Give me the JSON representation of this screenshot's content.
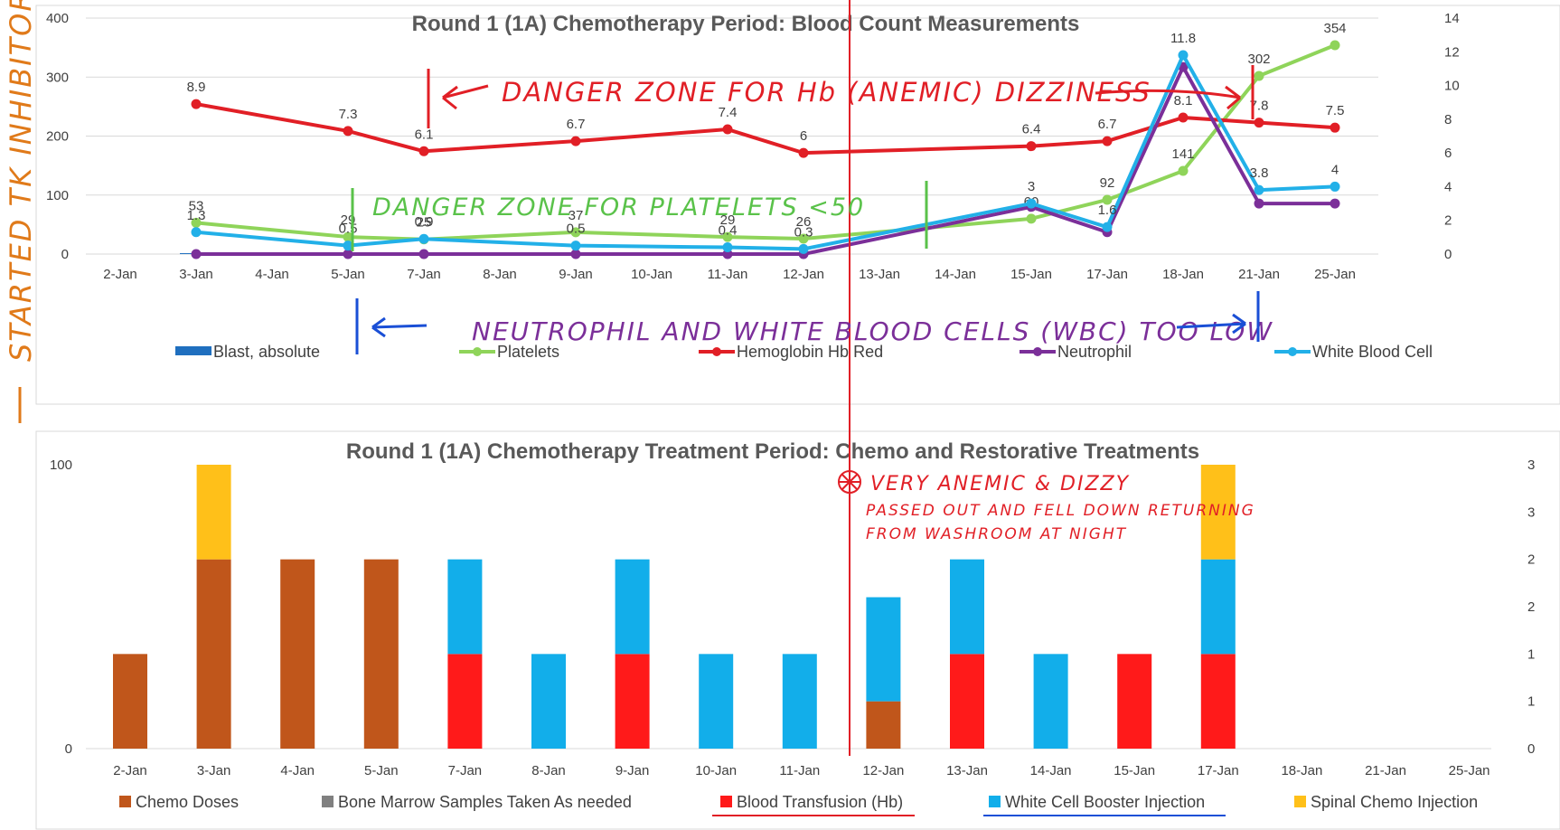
{
  "chart_data": [
    {
      "type": "line",
      "title": "Round 1 (1A) Chemotherapy Period: Blood Count Measurements",
      "categories": [
        "2-Jan",
        "3-Jan",
        "4-Jan",
        "5-Jan",
        "7-Jan",
        "8-Jan",
        "9-Jan",
        "10-Jan",
        "11-Jan",
        "12-Jan",
        "13-Jan",
        "14-Jan",
        "15-Jan",
        "17-Jan",
        "18-Jan",
        "21-Jan",
        "25-Jan"
      ],
      "ylim_left": [
        0,
        400
      ],
      "yticks_left": [
        "0",
        "100",
        "200",
        "300",
        "400"
      ],
      "ylim_right": [
        0,
        14
      ],
      "yticks_right": [
        "0",
        "2",
        "4",
        "6",
        "8",
        "10",
        "12",
        "14"
      ],
      "legend_position": "bottom",
      "series": [
        {
          "name": "Blast, absolute",
          "kind": "bar",
          "axis": "left",
          "color": "#1f6fbf",
          "values": [
            null,
            1.5,
            null,
            null,
            null,
            null,
            null,
            null,
            null,
            null,
            null,
            null,
            null,
            null,
            null,
            null,
            null
          ]
        },
        {
          "name": "Platelets",
          "kind": "line",
          "axis": "left",
          "color": "#8fd45a",
          "values": [
            null,
            53,
            null,
            29,
            25,
            null,
            37,
            null,
            29,
            26,
            null,
            null,
            60,
            92,
            141,
            302,
            354
          ],
          "labels": [
            null,
            "53",
            null,
            "29",
            "25",
            null,
            "37",
            null,
            "29",
            "26",
            null,
            null,
            "60",
            "92",
            "141",
            "302",
            "354"
          ]
        },
        {
          "name": "Hemoglobin Hb Red",
          "kind": "line",
          "axis": "right",
          "color": "#e11f26",
          "values": [
            null,
            8.9,
            null,
            7.3,
            6.1,
            null,
            6.7,
            null,
            7.4,
            6,
            null,
            null,
            6.4,
            6.7,
            8.1,
            7.8,
            7.5
          ],
          "labels": [
            null,
            "8.9",
            null,
            "7.3",
            "6.1",
            null,
            "6.7",
            null,
            "7.4",
            "6",
            null,
            null,
            "6.4",
            "6.7",
            "8.1",
            "7.8",
            "7.5"
          ]
        },
        {
          "name": "Neutrophil",
          "kind": "line",
          "axis": "right",
          "color": "#7b2f99",
          "values": [
            null,
            0,
            null,
            0,
            0,
            null,
            0,
            null,
            0,
            0,
            null,
            null,
            2.8,
            1.3,
            11.1,
            3.0,
            3.0
          ]
        },
        {
          "name": "White Blood Cell",
          "kind": "line",
          "axis": "right",
          "color": "#22b0e8",
          "values": [
            null,
            1.3,
            null,
            0.5,
            0.9,
            null,
            0.5,
            null,
            0.4,
            0.3,
            null,
            null,
            3,
            1.6,
            11.8,
            3.8,
            4
          ],
          "labels": [
            null,
            "1.3",
            null,
            "0.5",
            "0.9",
            null,
            "0.5",
            null,
            "0.4",
            "0.3",
            null,
            null,
            "3",
            "1.6",
            "11.8",
            "3.8",
            "4"
          ]
        }
      ]
    },
    {
      "type": "bar",
      "stacked": true,
      "title": "Round 1 (1A) Chemotherapy Treatment Period: Chemo and Restorative Treatments",
      "categories": [
        "2-Jan",
        "3-Jan",
        "4-Jan",
        "5-Jan",
        "7-Jan",
        "8-Jan",
        "9-Jan",
        "10-Jan",
        "11-Jan",
        "12-Jan",
        "13-Jan",
        "14-Jan",
        "15-Jan",
        "17-Jan",
        "18-Jan",
        "21-Jan",
        "25-Jan"
      ],
      "ylim_left": [
        0,
        100
      ],
      "yticks_left": [
        "0",
        "100"
      ],
      "ylim_right": [
        0,
        3
      ],
      "yticks_right": [
        "0",
        "1",
        "1",
        "2",
        "2",
        "3",
        "3"
      ],
      "yticks_right_values": [
        0,
        0.5,
        1,
        1.5,
        2,
        2.5,
        3
      ],
      "legend_position": "bottom",
      "series": [
        {
          "name": "Chemo Doses",
          "color": "#c0561b",
          "values": [
            1,
            2,
            2,
            2,
            0,
            0,
            0,
            0,
            0,
            0.5,
            0,
            0,
            0,
            0,
            0,
            0,
            0
          ]
        },
        {
          "name": "Bone Marrow Samples Taken As needed",
          "color": "#808080",
          "values": [
            0,
            0,
            0,
            0,
            0,
            0,
            0,
            0,
            0,
            0,
            0,
            0,
            0,
            0,
            0,
            0,
            0
          ]
        },
        {
          "name": "Blood Transfusion (Hb)",
          "color": "#ff1a1a",
          "values": [
            0,
            0,
            0,
            0,
            1,
            0,
            1,
            0,
            0,
            0,
            1,
            0,
            1,
            1,
            0,
            0,
            0
          ]
        },
        {
          "name": "White Cell Booster Injection",
          "color": "#12aeea",
          "values": [
            0,
            0,
            0,
            0,
            1,
            1,
            1,
            1,
            1,
            1.1,
            1,
            1,
            0,
            1,
            0,
            0,
            0
          ]
        },
        {
          "name": "Spinal Chemo Injection",
          "color": "#ffc019",
          "values": [
            0,
            1,
            0,
            0,
            0,
            0,
            0,
            0,
            0,
            0,
            0,
            0,
            0,
            1,
            0,
            0,
            0
          ]
        }
      ]
    }
  ],
  "annotations": {
    "left_side": "STARTED TK INHIBITORS",
    "hb_zone": "DANGER ZONE FOR Hb (ANEMIC) DIZZINESS",
    "platelet_zone": "DANGER ZONE FOR PLATELETS <50",
    "wbc_zone": "NEUTROPHIL AND WHITE BLOOD CELLS (WBC) TOO LOW",
    "anemic_line1": "VERY ANEMIC & DIZZY",
    "anemic_line2": "PASSED OUT AND FELL DOWN RETURNING",
    "anemic_line3": "FROM WASHROOM AT NIGHT"
  },
  "colors": {
    "hand_red": "#e11f26",
    "hand_green": "#5ac24a",
    "hand_blue": "#1a4fd6",
    "hand_purple": "#7b2f99",
    "hand_orange": "#e07a1a",
    "gridline": "#d9d9d9"
  }
}
